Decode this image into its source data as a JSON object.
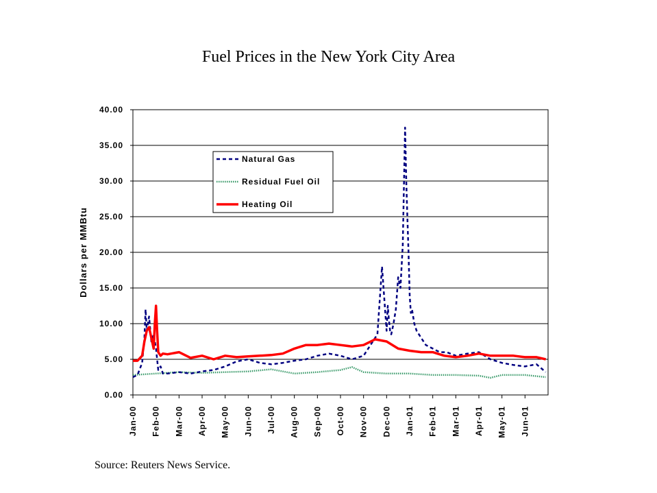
{
  "chart_data": {
    "type": "line",
    "title": "Fuel Prices in the New York City Area",
    "xlabel": "",
    "ylabel": "Dollars per MMBtu",
    "source": "Source:  Reuters News Service.",
    "ylim": [
      0,
      40
    ],
    "yticks": [
      "0.00",
      "5.00",
      "10.00",
      "15.00",
      "20.00",
      "25.00",
      "30.00",
      "35.00",
      "40.00"
    ],
    "xticks": [
      "Jan-00",
      "Feb-00",
      "Mar-00",
      "Apr-00",
      "May-00",
      "Jun-00",
      "Jul-00",
      "Aug-00",
      "Sep-00",
      "Oct-00",
      "Nov-00",
      "Dec-00",
      "Jan-01",
      "Feb-01",
      "Mar-01",
      "Apr-01",
      "May-01",
      "Jun-01"
    ],
    "grid": "horizontal",
    "legend_position": "upper-left",
    "series": [
      {
        "name": "Natural Gas",
        "color": "#000080",
        "style": "dashed",
        "x": [
          0,
          0.2,
          0.4,
          0.5,
          0.55,
          0.6,
          0.7,
          0.8,
          0.9,
          1.0,
          1.1,
          1.2,
          1.3,
          1.5,
          2.0,
          2.5,
          3.0,
          3.5,
          4.0,
          4.5,
          5.0,
          5.5,
          6.0,
          6.5,
          7.0,
          7.5,
          8.0,
          8.5,
          9.0,
          9.5,
          10.0,
          10.3,
          10.6,
          10.8,
          11.0,
          11.05,
          11.1,
          11.15,
          11.2,
          11.3,
          11.4,
          11.5,
          11.6,
          11.7,
          11.8,
          11.85,
          11.9,
          11.95,
          12.0,
          12.05,
          12.1,
          12.2,
          12.3,
          12.5,
          12.7,
          13.0,
          13.3,
          13.6,
          14.0,
          14.5,
          15.0,
          15.5,
          16.0,
          16.5,
          17.0,
          17.5,
          17.9
        ],
        "values": [
          2.5,
          2.8,
          4.5,
          8.0,
          12.0,
          9.0,
          11.0,
          7.5,
          8.5,
          6.5,
          3.5,
          4.0,
          3.0,
          3.0,
          3.2,
          3.0,
          3.3,
          3.5,
          4.0,
          4.7,
          5.0,
          4.5,
          4.3,
          4.5,
          4.8,
          5.0,
          5.5,
          5.8,
          5.5,
          5.0,
          5.5,
          7.0,
          8.5,
          18.0,
          9.0,
          12.5,
          10.5,
          9.0,
          8.5,
          10.0,
          12.0,
          16.5,
          15.0,
          21.0,
          37.5,
          30.0,
          25.0,
          20.0,
          14.0,
          11.5,
          12.0,
          10.0,
          9.0,
          8.0,
          7.0,
          6.5,
          6.0,
          6.0,
          5.5,
          5.8,
          6.0,
          5.0,
          4.5,
          4.2,
          4.0,
          4.3,
          3.2
        ]
      },
      {
        "name": "Residual Fuel Oil",
        "color": "#3a9a6a",
        "style": "dotted",
        "x": [
          0,
          1,
          2,
          3,
          4,
          5,
          6,
          7,
          8,
          9,
          9.5,
          10,
          11,
          12,
          13,
          14,
          15,
          15.5,
          16,
          17,
          17.9
        ],
        "values": [
          2.8,
          3.0,
          3.2,
          3.1,
          3.2,
          3.3,
          3.6,
          3.0,
          3.2,
          3.5,
          3.9,
          3.2,
          3.0,
          3.0,
          2.8,
          2.8,
          2.7,
          2.4,
          2.8,
          2.8,
          2.5
        ]
      },
      {
        "name": "Heating Oil",
        "color": "#ff0000",
        "style": "solid",
        "x": [
          0,
          0.2,
          0.4,
          0.5,
          0.6,
          0.7,
          0.8,
          0.9,
          0.95,
          1.0,
          1.05,
          1.1,
          1.2,
          1.3,
          1.5,
          2.0,
          2.5,
          3.0,
          3.5,
          4.0,
          4.5,
          5.0,
          5.5,
          6.0,
          6.5,
          7.0,
          7.5,
          8.0,
          8.5,
          9.0,
          9.5,
          10.0,
          10.5,
          11.0,
          11.5,
          12.0,
          12.5,
          13.0,
          13.5,
          14.0,
          14.5,
          15.0,
          15.5,
          16.0,
          16.5,
          17.0,
          17.5,
          17.9
        ],
        "values": [
          4.8,
          4.8,
          5.5,
          7.5,
          9.0,
          9.5,
          8.0,
          6.5,
          10.0,
          12.5,
          9.0,
          6.0,
          5.5,
          5.8,
          5.7,
          6.0,
          5.2,
          5.5,
          5.0,
          5.5,
          5.3,
          5.4,
          5.5,
          5.6,
          5.8,
          6.5,
          7.0,
          7.0,
          7.2,
          7.0,
          6.8,
          7.0,
          7.8,
          7.5,
          6.5,
          6.2,
          6.0,
          6.0,
          5.5,
          5.3,
          5.5,
          5.8,
          5.5,
          5.5,
          5.5,
          5.3,
          5.3,
          5.0
        ]
      }
    ]
  }
}
